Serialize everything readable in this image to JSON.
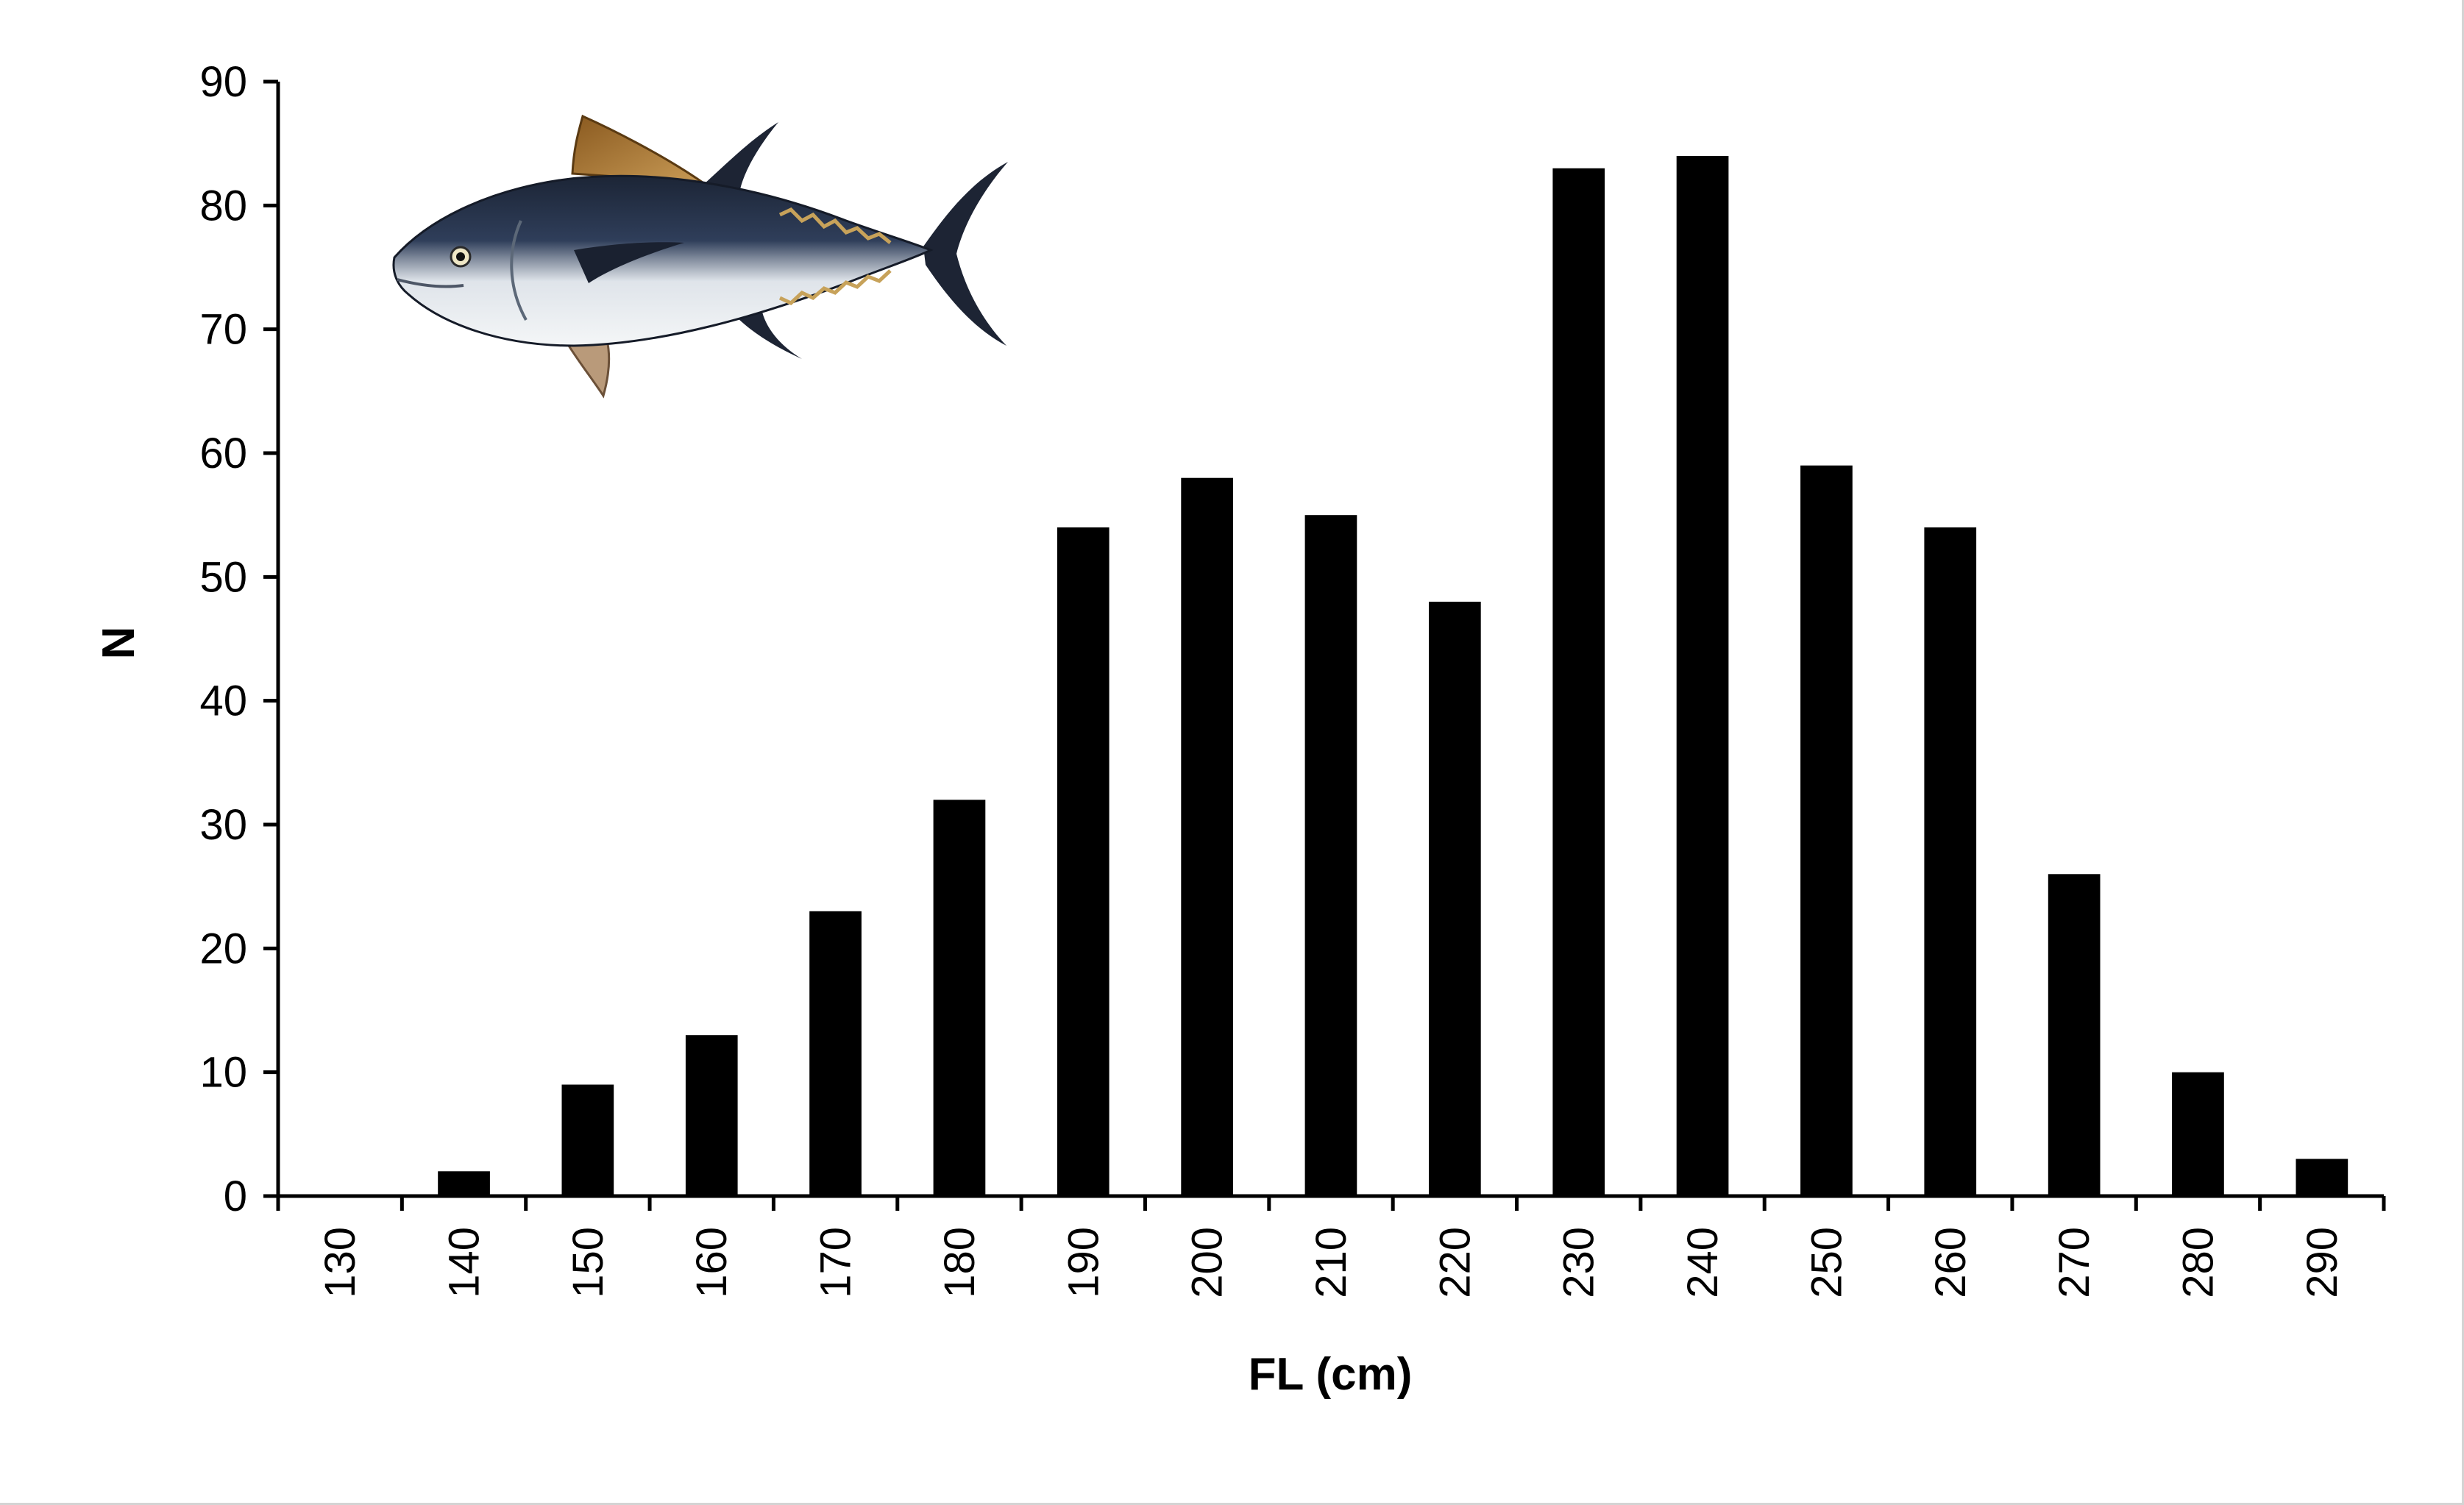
{
  "chart_data": {
    "type": "bar",
    "title": "",
    "xlabel": "FL (cm)",
    "ylabel": "N",
    "categories": [
      "130",
      "140",
      "150",
      "160",
      "170",
      "180",
      "190",
      "200",
      "210",
      "220",
      "230",
      "240",
      "250",
      "260",
      "270",
      "280",
      "290"
    ],
    "values": [
      0,
      2,
      9,
      13,
      23,
      32,
      54,
      58,
      55,
      48,
      83,
      84,
      59,
      54,
      26,
      10,
      3
    ],
    "ylim": [
      0,
      90
    ],
    "yticks": [
      0,
      10,
      20,
      30,
      40,
      50,
      60,
      70,
      80,
      90
    ],
    "grid": false,
    "bar_color": "#000000",
    "illustration": "bluefin-tuna-illustration"
  }
}
